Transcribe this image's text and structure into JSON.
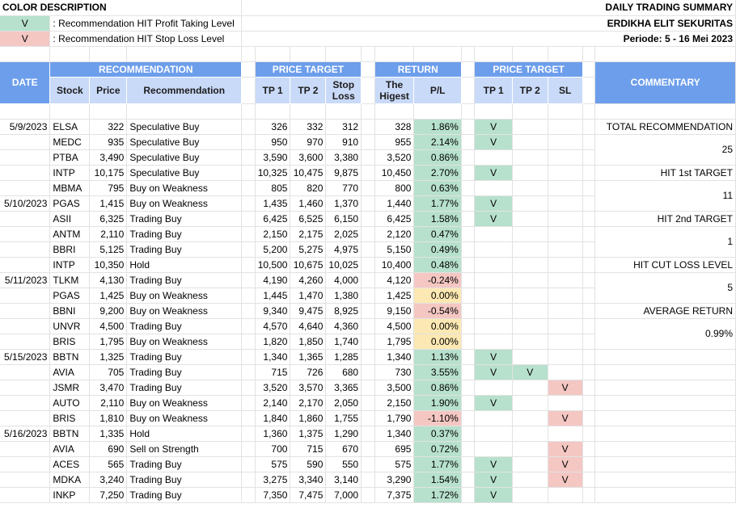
{
  "legend": {
    "title": "COLOR DESCRIPTION",
    "items": [
      {
        "mark": "V",
        "text": ": Recommendation HIT Profit Taking Level",
        "color": "#b7e1cd"
      },
      {
        "mark": "V",
        "text": ": Recommendation HIT Stop Loss Level",
        "color": "#f4c7c3"
      }
    ]
  },
  "report": {
    "title": "DAILY TRADING SUMMARY",
    "company": "ERDIKHA ELIT SEKURITAS",
    "period": "Periode: 5 - 16 Mei 2023"
  },
  "headers": {
    "date": "DATE",
    "recommendation_group": "RECOMMENDATION",
    "stock": "Stock",
    "price": "Price",
    "recommendation": "Recommendation",
    "price_target_group": "PRICE TARGET",
    "tp1": "TP 1",
    "tp2": "TP 2",
    "stop_loss": "Stop Loss",
    "return_group": "RETURN",
    "highest": "The Higest",
    "pl": "P/L",
    "hit_group": "PRICE TARGET",
    "hit_tp1": "TP 1",
    "hit_tp2": "TP 2",
    "hit_sl": "SL",
    "commentary": "COMMENTARY"
  },
  "rows": [
    {
      "date": "5/9/2023",
      "stock": "ELSA",
      "price": "322",
      "rec": "Speculative Buy",
      "tp1": "326",
      "tp2": "332",
      "sl": "312",
      "high": "328",
      "pl": "1.86%",
      "plc": "green",
      "h1": "V",
      "h2": "",
      "hs": ""
    },
    {
      "date": "",
      "stock": "MEDC",
      "price": "935",
      "rec": "Speculative Buy",
      "tp1": "950",
      "tp2": "970",
      "sl": "910",
      "high": "955",
      "pl": "2.14%",
      "plc": "green",
      "h1": "V",
      "h2": "",
      "hs": ""
    },
    {
      "date": "",
      "stock": "PTBA",
      "price": "3,490",
      "rec": "Speculative Buy",
      "tp1": "3,590",
      "tp2": "3,600",
      "sl": "3,380",
      "high": "3,520",
      "pl": "0.86%",
      "plc": "green",
      "h1": "",
      "h2": "",
      "hs": ""
    },
    {
      "date": "",
      "stock": "INTP",
      "price": "10,175",
      "rec": "Speculative Buy",
      "tp1": "10,325",
      "tp2": "10,475",
      "sl": "9,875",
      "high": "10,450",
      "pl": "2.70%",
      "plc": "green",
      "h1": "V",
      "h2": "",
      "hs": ""
    },
    {
      "date": "",
      "stock": "MBMA",
      "price": "795",
      "rec": "Buy on Weakness",
      "tp1": "805",
      "tp2": "820",
      "sl": "770",
      "high": "800",
      "pl": "0.63%",
      "plc": "green",
      "h1": "",
      "h2": "",
      "hs": ""
    },
    {
      "date": "5/10/2023",
      "stock": "PGAS",
      "price": "1,415",
      "rec": "Buy on Weakness",
      "tp1": "1,435",
      "tp2": "1,460",
      "sl": "1,370",
      "high": "1,440",
      "pl": "1.77%",
      "plc": "green",
      "h1": "V",
      "h2": "",
      "hs": ""
    },
    {
      "date": "",
      "stock": "ASII",
      "price": "6,325",
      "rec": "Trading Buy",
      "tp1": "6,425",
      "tp2": "6,525",
      "sl": "6,150",
      "high": "6,425",
      "pl": "1.58%",
      "plc": "green",
      "h1": "V",
      "h2": "",
      "hs": ""
    },
    {
      "date": "",
      "stock": "ANTM",
      "price": "2,110",
      "rec": "Trading Buy",
      "tp1": "2,150",
      "tp2": "2,175",
      "sl": "2,025",
      "high": "2,120",
      "pl": "0.47%",
      "plc": "green",
      "h1": "",
      "h2": "",
      "hs": ""
    },
    {
      "date": "",
      "stock": "BBRI",
      "price": "5,125",
      "rec": "Trading Buy",
      "tp1": "5,200",
      "tp2": "5,275",
      "sl": "4,975",
      "high": "5,150",
      "pl": "0.49%",
      "plc": "green",
      "h1": "",
      "h2": "",
      "hs": ""
    },
    {
      "date": "",
      "stock": "INTP",
      "price": "10,350",
      "rec": "Hold",
      "tp1": "10,500",
      "tp2": "10,675",
      "sl": "10,025",
      "high": "10,400",
      "pl": "0.48%",
      "plc": "green",
      "h1": "",
      "h2": "",
      "hs": ""
    },
    {
      "date": "5/11/2023",
      "stock": "TLKM",
      "price": "4,130",
      "rec": "Trading Buy",
      "tp1": "4,190",
      "tp2": "4,260",
      "sl": "4,000",
      "high": "4,120",
      "pl": "-0.24%",
      "plc": "red",
      "h1": "",
      "h2": "",
      "hs": ""
    },
    {
      "date": "",
      "stock": "PGAS",
      "price": "1,425",
      "rec": "Buy on Weakness",
      "tp1": "1,445",
      "tp2": "1,470",
      "sl": "1,380",
      "high": "1,425",
      "pl": "0.00%",
      "plc": "yellow",
      "h1": "",
      "h2": "",
      "hs": ""
    },
    {
      "date": "",
      "stock": "BBNI",
      "price": "9,200",
      "rec": "Buy on Weakness",
      "tp1": "9,340",
      "tp2": "9,475",
      "sl": "8,925",
      "high": "9,150",
      "pl": "-0.54%",
      "plc": "red",
      "h1": "",
      "h2": "",
      "hs": ""
    },
    {
      "date": "",
      "stock": "UNVR",
      "price": "4,500",
      "rec": "Trading Buy",
      "tp1": "4,570",
      "tp2": "4,640",
      "sl": "4,360",
      "high": "4,500",
      "pl": "0.00%",
      "plc": "yellow",
      "h1": "",
      "h2": "",
      "hs": ""
    },
    {
      "date": "",
      "stock": "BRIS",
      "price": "1,795",
      "rec": "Buy on Weakness",
      "tp1": "1,820",
      "tp2": "1,850",
      "sl": "1,740",
      "high": "1,795",
      "pl": "0.00%",
      "plc": "yellow",
      "h1": "",
      "h2": "",
      "hs": ""
    },
    {
      "date": "5/15/2023",
      "stock": "BBTN",
      "price": "1,325",
      "rec": "Trading Buy",
      "tp1": "1,340",
      "tp2": "1,365",
      "sl": "1,285",
      "high": "1,340",
      "pl": "1.13%",
      "plc": "green",
      "h1": "V",
      "h2": "",
      "hs": ""
    },
    {
      "date": "",
      "stock": "AVIA",
      "price": "705",
      "rec": "Trading Buy",
      "tp1": "715",
      "tp2": "726",
      "sl": "680",
      "high": "730",
      "pl": "3.55%",
      "plc": "green",
      "h1": "V",
      "h2": "V",
      "hs": ""
    },
    {
      "date": "",
      "stock": "JSMR",
      "price": "3,470",
      "rec": "Trading Buy",
      "tp1": "3,520",
      "tp2": "3,570",
      "sl": "3,365",
      "high": "3,500",
      "pl": "0.86%",
      "plc": "green",
      "h1": "",
      "h2": "",
      "hs": "V"
    },
    {
      "date": "",
      "stock": "AUTO",
      "price": "2,110",
      "rec": "Buy on Weakness",
      "tp1": "2,140",
      "tp2": "2,170",
      "sl": "2,050",
      "high": "2,150",
      "pl": "1.90%",
      "plc": "green",
      "h1": "V",
      "h2": "",
      "hs": ""
    },
    {
      "date": "",
      "stock": "BRIS",
      "price": "1,810",
      "rec": "Buy on Weakness",
      "tp1": "1,840",
      "tp2": "1,860",
      "sl": "1,755",
      "high": "1,790",
      "pl": "-1.10%",
      "plc": "red",
      "h1": "",
      "h2": "",
      "hs": "V"
    },
    {
      "date": "5/16/2023",
      "stock": "BBTN",
      "price": "1,335",
      "rec": "Hold",
      "tp1": "1,360",
      "tp2": "1,375",
      "sl": "1,290",
      "high": "1,340",
      "pl": "0.37%",
      "plc": "green",
      "h1": "",
      "h2": "",
      "hs": ""
    },
    {
      "date": "",
      "stock": "AVIA",
      "price": "690",
      "rec": "Sell on Strength",
      "tp1": "700",
      "tp2": "715",
      "sl": "670",
      "high": "695",
      "pl": "0.72%",
      "plc": "green",
      "h1": "",
      "h2": "",
      "hs": "V"
    },
    {
      "date": "",
      "stock": "ACES",
      "price": "565",
      "rec": "Trading Buy",
      "tp1": "575",
      "tp2": "590",
      "sl": "550",
      "high": "575",
      "pl": "1.77%",
      "plc": "green",
      "h1": "V",
      "h2": "",
      "hs": "V"
    },
    {
      "date": "",
      "stock": "MDKA",
      "price": "3,240",
      "rec": "Trading Buy",
      "tp1": "3,275",
      "tp2": "3,340",
      "sl": "3,140",
      "high": "3,290",
      "pl": "1.54%",
      "plc": "green",
      "h1": "V",
      "h2": "",
      "hs": "V"
    },
    {
      "date": "",
      "stock": "INKP",
      "price": "7,250",
      "rec": "Trading Buy",
      "tp1": "7,350",
      "tp2": "7,475",
      "sl": "7,000",
      "high": "7,375",
      "pl": "1.72%",
      "plc": "green",
      "h1": "V",
      "h2": "",
      "hs": ""
    }
  ],
  "commentary": {
    "total_label": "TOTAL RECOMMENDATION",
    "total_value": "25",
    "hit1_label": "HIT 1st TARGET",
    "hit1_value": "11",
    "hit2_label": "HIT 2nd TARGET",
    "hit2_value": "1",
    "cut_label": "HIT CUT LOSS LEVEL",
    "cut_value": "5",
    "avg_label": "AVERAGE RETURN",
    "avg_value": "0.99%"
  },
  "colors": {
    "header_blue": "#6d9eeb",
    "subheader_blue": "#c9daf8",
    "hit_green": "#b7e1cd",
    "stop_red": "#f4c7c3",
    "flat_yellow": "#fce8b2"
  }
}
